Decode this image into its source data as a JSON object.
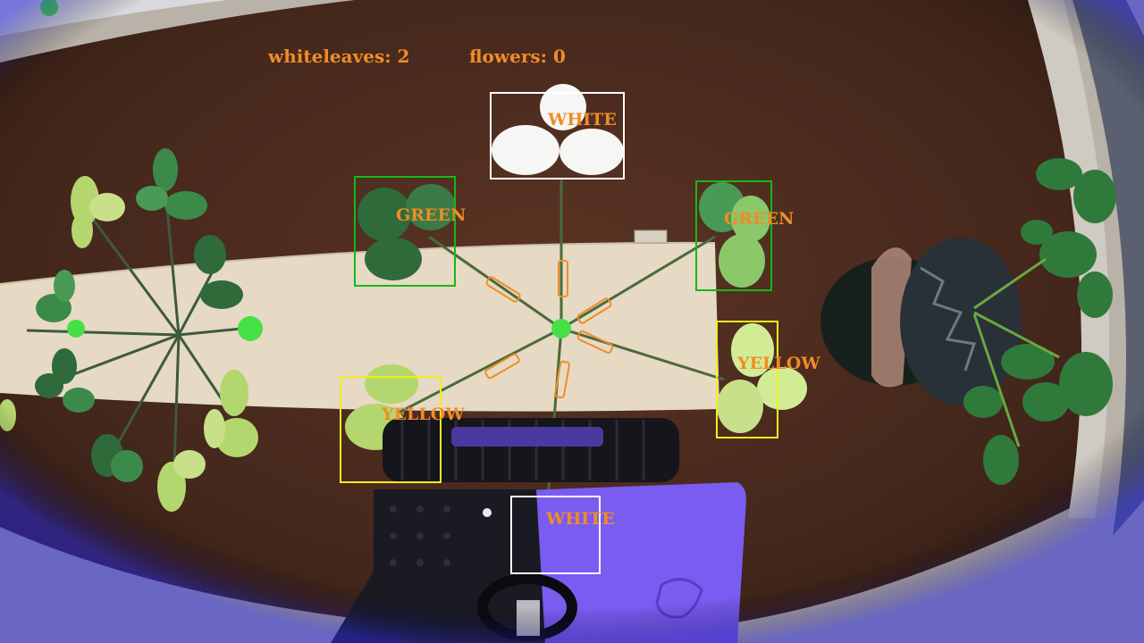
{
  "counters": {
    "whiteleaves_text": "whiteleaves: 2",
    "flowers_text": "flowers: 0"
  },
  "detections": [
    {
      "label": "WHITE",
      "color": "#ffffff"
    },
    {
      "label": "GREEN",
      "color": "#16b816"
    },
    {
      "label": "GREEN",
      "color": "#16b816"
    },
    {
      "label": "YELLOW",
      "color": "#f2ee1e"
    },
    {
      "label": "YELLOW",
      "color": "#f2ee1e"
    },
    {
      "label": "WHITE",
      "color": "#ffffff"
    }
  ],
  "colors": {
    "label_text": "#f08c28",
    "floor": "#4a2a1e",
    "board": "#e6dac4",
    "robot_plate": "#7a5cf0"
  }
}
